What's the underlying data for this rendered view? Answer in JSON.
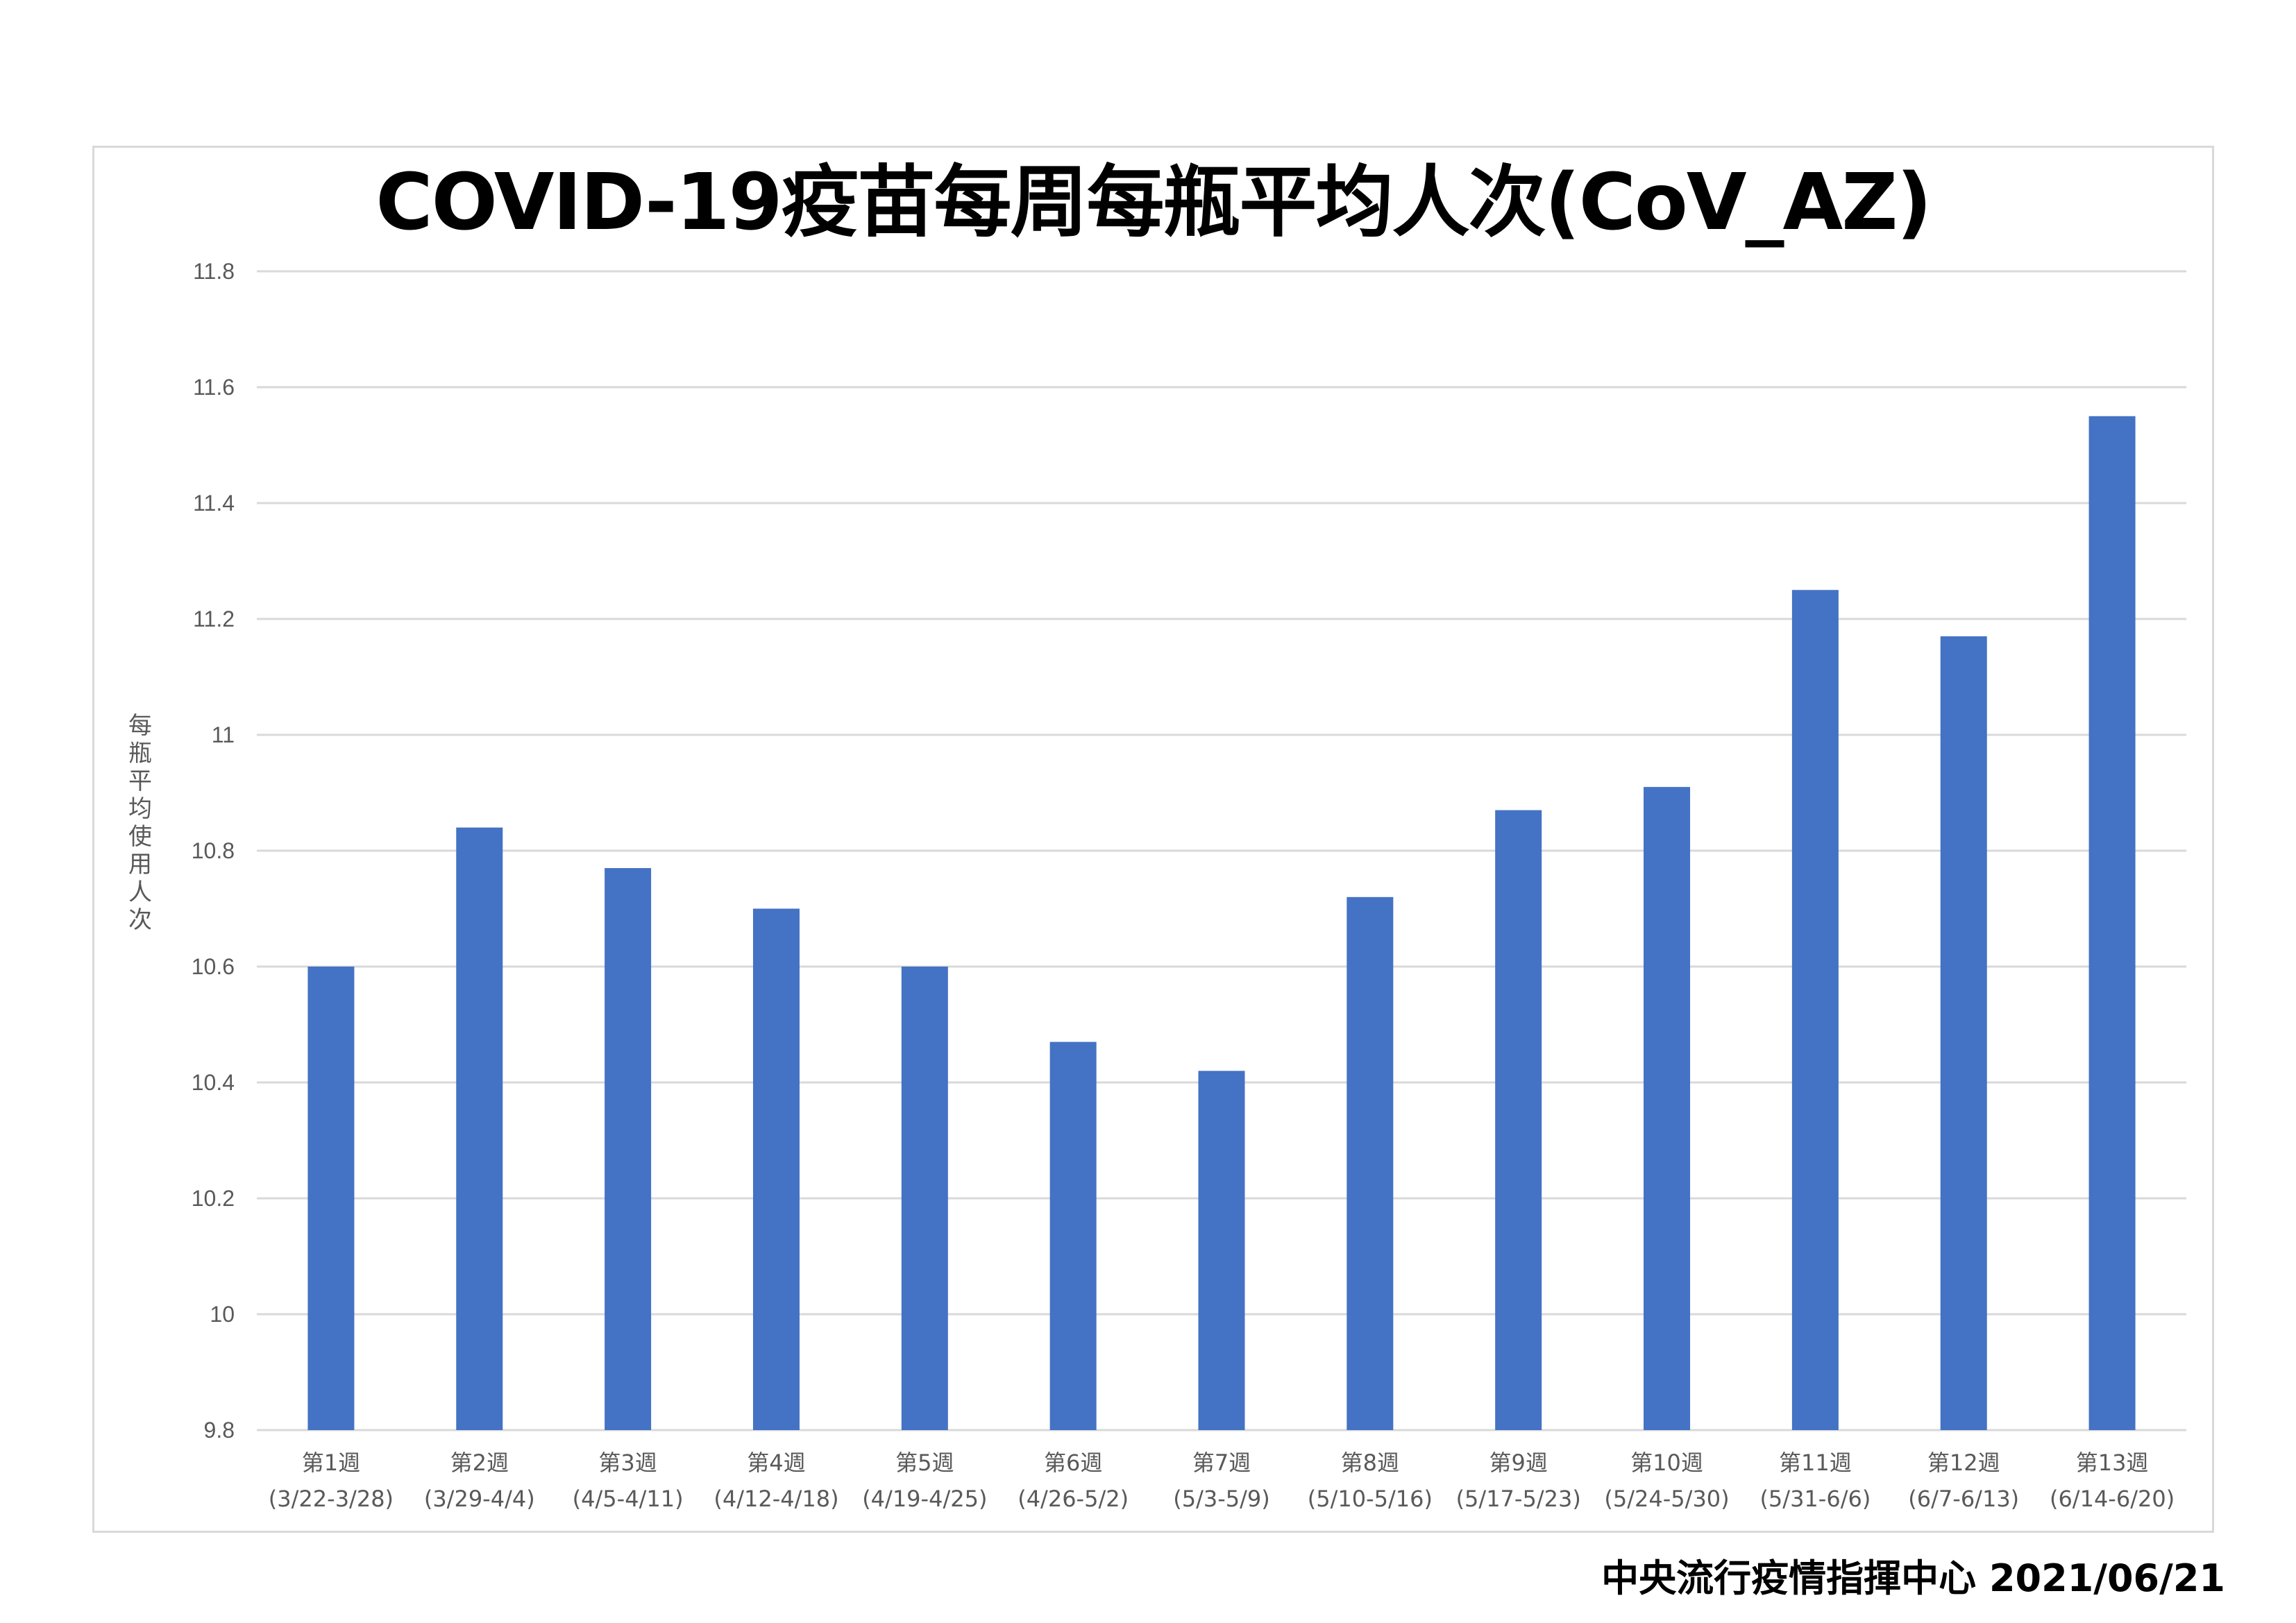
{
  "chart_data": {
    "type": "bar",
    "title": "COVID-19疫苗每周每瓶平均人次(CoV_AZ)",
    "ylabel": "每瓶平均使用人次",
    "xlabel": "",
    "ylim": [
      9.8,
      11.8
    ],
    "yticks": [
      9.8,
      10,
      10.2,
      10.4,
      10.6,
      10.8,
      11,
      11.2,
      11.4,
      11.6,
      11.8
    ],
    "ytick_labels": [
      "9.8",
      "10",
      "10.2",
      "10.4",
      "10.6",
      "10.8",
      "11",
      "11.2",
      "11.4",
      "11.6",
      "11.8"
    ],
    "grid": true,
    "legend": "none",
    "bar_color": "#4472c4",
    "grid_color": "#d9d9d9",
    "categories": [
      {
        "week": "第1週",
        "range": "(3/22-3/28)"
      },
      {
        "week": "第2週",
        "range": "(3/29-4/4)"
      },
      {
        "week": "第3週",
        "range": "(4/5-4/11)"
      },
      {
        "week": "第4週",
        "range": "(4/12-4/18)"
      },
      {
        "week": "第5週",
        "range": "(4/19-4/25)"
      },
      {
        "week": "第6週",
        "range": "(4/26-5/2)"
      },
      {
        "week": "第7週",
        "range": "(5/3-5/9)"
      },
      {
        "week": "第8週",
        "range": "(5/10-5/16)"
      },
      {
        "week": "第9週",
        "range": "(5/17-5/23)"
      },
      {
        "week": "第10週",
        "range": "(5/24-5/30)"
      },
      {
        "week": "第11週",
        "range": "(5/31-6/6)"
      },
      {
        "week": "第12週",
        "range": "(6/7-6/13)"
      },
      {
        "week": "第13週",
        "range": "(6/14-6/20)"
      }
    ],
    "values": [
      10.6,
      10.84,
      10.77,
      10.7,
      10.6,
      10.47,
      10.42,
      10.72,
      10.87,
      10.91,
      11.25,
      11.17,
      11.55
    ]
  },
  "footer": {
    "source": "中央流行疫情指揮中心 2021/06/21"
  }
}
